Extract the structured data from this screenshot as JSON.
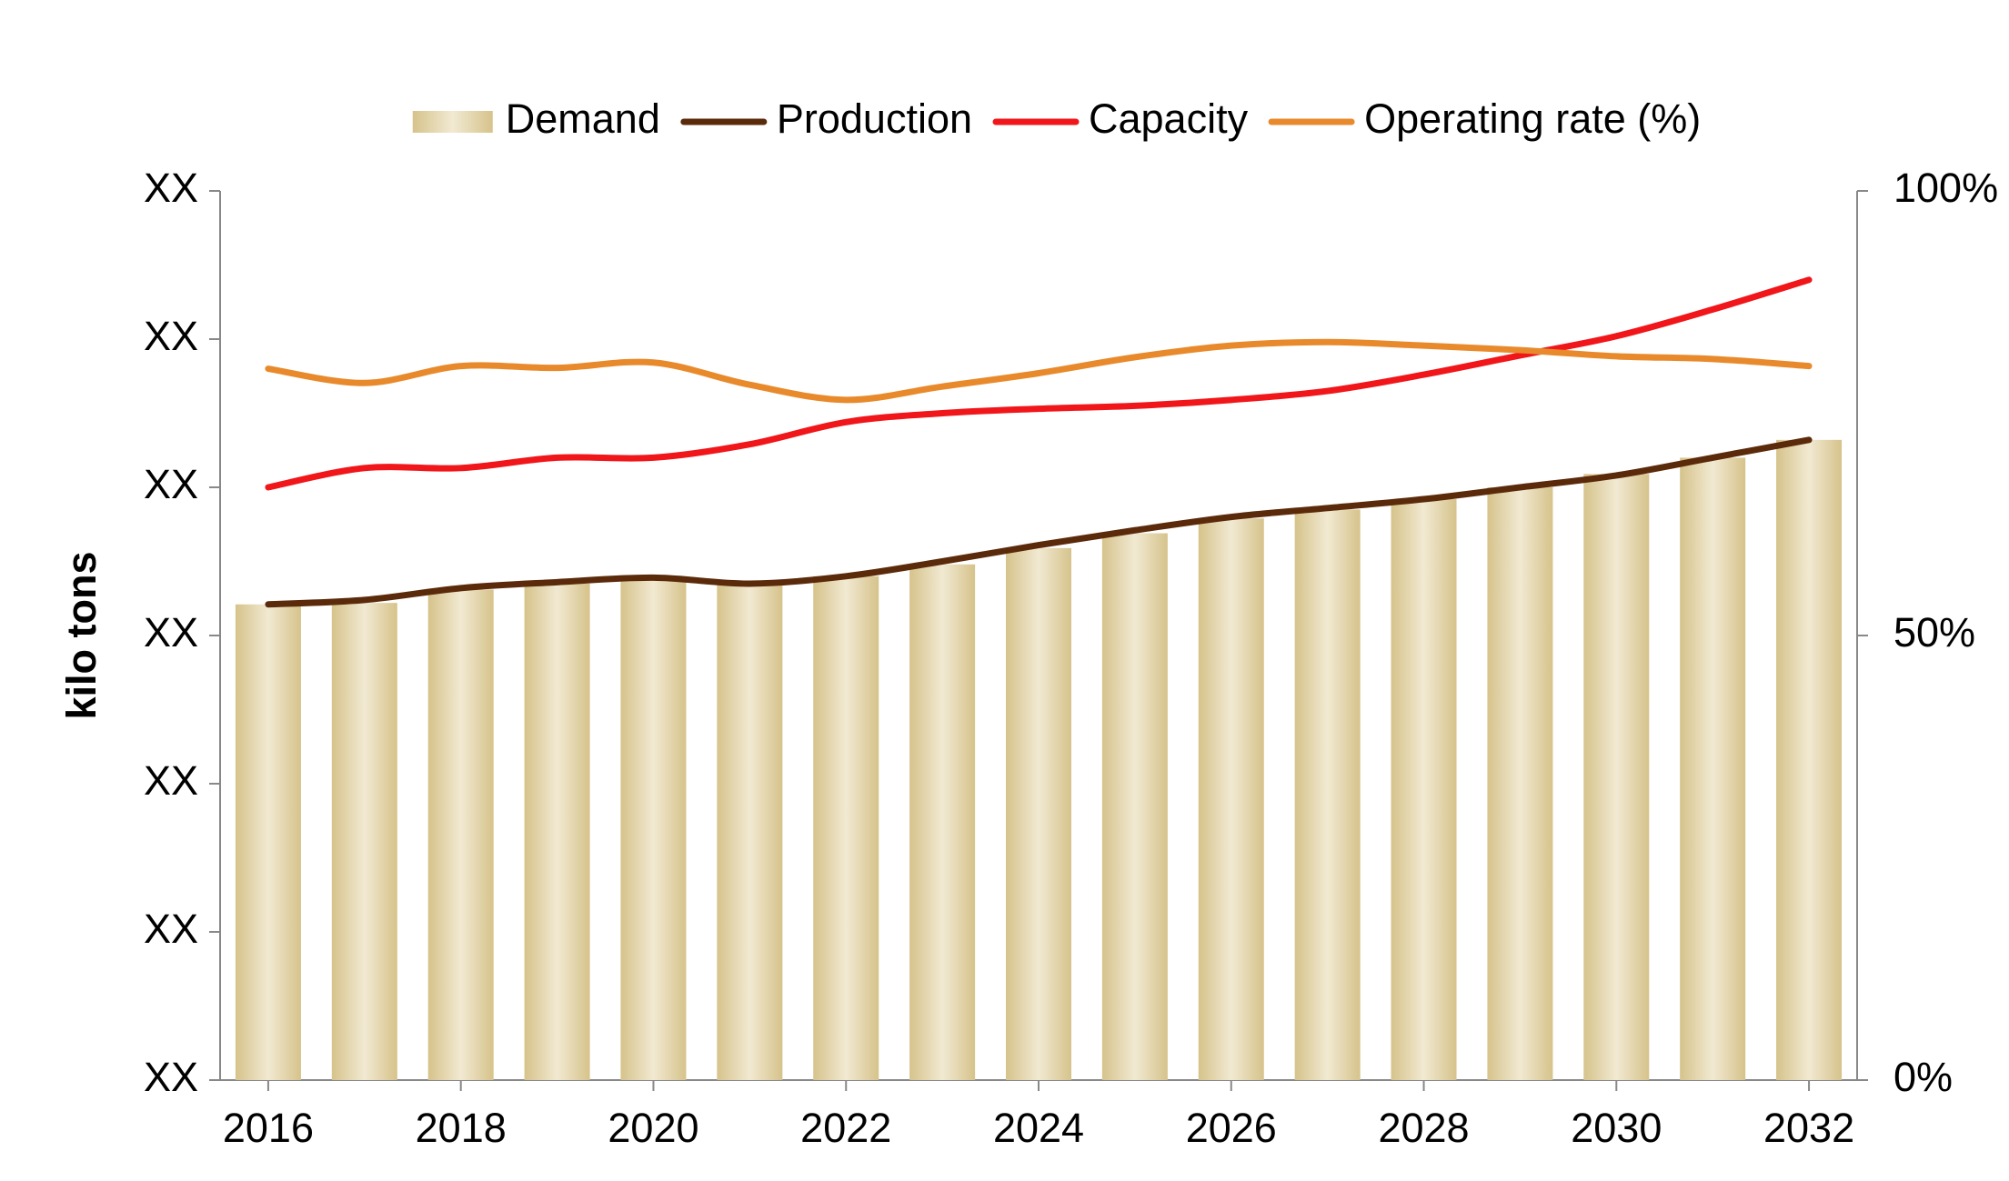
{
  "chart_data": {
    "type": "bar",
    "y_label": "kilo tons",
    "x": [
      2016,
      2017,
      2018,
      2019,
      2020,
      2021,
      2022,
      2023,
      2024,
      2025,
      2026,
      2027,
      2028,
      2029,
      2030,
      2031,
      2032
    ],
    "xlim": [
      2015.5,
      2032.5
    ],
    "xticks": [
      2016,
      2018,
      2020,
      2022,
      2024,
      2026,
      2028,
      2030,
      2032
    ],
    "ylim": [
      0,
      6
    ],
    "yticks": [
      {
        "value": 0,
        "label": "XX"
      },
      {
        "value": 1,
        "label": "XX"
      },
      {
        "value": 2,
        "label": "XX"
      },
      {
        "value": 3,
        "label": "XX"
      },
      {
        "value": 4,
        "label": "XX"
      },
      {
        "value": 5,
        "label": "XX"
      },
      {
        "value": 6,
        "label": "XX"
      }
    ],
    "y2lim": [
      0,
      100
    ],
    "y2ticks": [
      {
        "value": 0,
        "label": "0%"
      },
      {
        "value": 50,
        "label": "50%"
      },
      {
        "value": 100,
        "label": "100%"
      }
    ],
    "legend": "top",
    "series": [
      {
        "name": "Demand",
        "type": "bar",
        "color": "#d8c690",
        "values": [
          3.21,
          3.22,
          3.31,
          3.35,
          3.38,
          3.34,
          3.4,
          3.48,
          3.59,
          3.69,
          3.79,
          3.85,
          3.92,
          4.0,
          4.09,
          4.2,
          4.32
        ]
      },
      {
        "name": "Production",
        "type": "line",
        "color": "#5a2a0a",
        "values": [
          3.21,
          3.24,
          3.32,
          3.36,
          3.39,
          3.35,
          3.4,
          3.5,
          3.61,
          3.71,
          3.8,
          3.86,
          3.92,
          4.0,
          4.08,
          4.2,
          4.32
        ]
      },
      {
        "name": "Capacity",
        "type": "line",
        "color": "#f0161a",
        "values": [
          4.0,
          4.13,
          4.13,
          4.2,
          4.2,
          4.29,
          4.44,
          4.5,
          4.53,
          4.55,
          4.59,
          4.65,
          4.76,
          4.89,
          5.02,
          5.2,
          5.4
        ]
      },
      {
        "name": "Operating rate (%)",
        "type": "line",
        "axis": "y2",
        "color": "#e88a2c",
        "values": [
          80.0,
          78.4,
          80.3,
          80.1,
          80.7,
          78.2,
          76.5,
          78.0,
          79.5,
          81.3,
          82.6,
          83.0,
          82.6,
          82.1,
          81.4,
          81.1,
          80.3
        ]
      }
    ]
  }
}
